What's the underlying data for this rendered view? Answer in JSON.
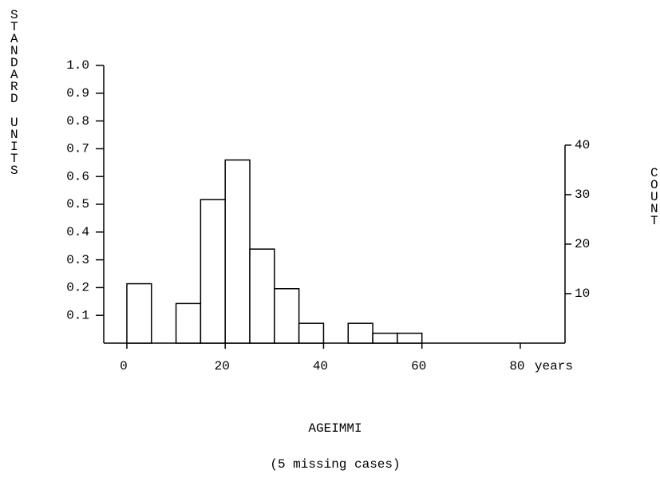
{
  "chart_data": {
    "type": "histogram",
    "y_label": "STANDARD UNITS",
    "y2_label": "COUNT",
    "x_label": "AGEIMMI",
    "x_unit": "years",
    "note": "(5 missing cases)",
    "bins": [
      0,
      5,
      10,
      15,
      20,
      25,
      30,
      35,
      40,
      45,
      50,
      55,
      60
    ],
    "values": [
      12,
      0,
      8,
      29,
      37,
      19,
      11,
      4,
      0,
      4,
      2,
      2
    ],
    "axis": "y2",
    "color": "#ffffff",
    "edge_color": "#000000",
    "xlim": [
      -4.7,
      89.1
    ],
    "xticks": [
      0,
      20,
      40,
      60,
      80
    ],
    "ylim": [
      0,
      1
    ],
    "yticks": [
      0.1,
      0.2,
      0.3,
      0.4,
      0.5,
      0.6,
      0.7,
      0.8,
      0.9,
      {
        "value": 1,
        "label": "1.0"
      }
    ],
    "y2lim": [
      0,
      56.1
    ],
    "y2ticks": [
      10,
      20,
      30,
      40
    ]
  }
}
